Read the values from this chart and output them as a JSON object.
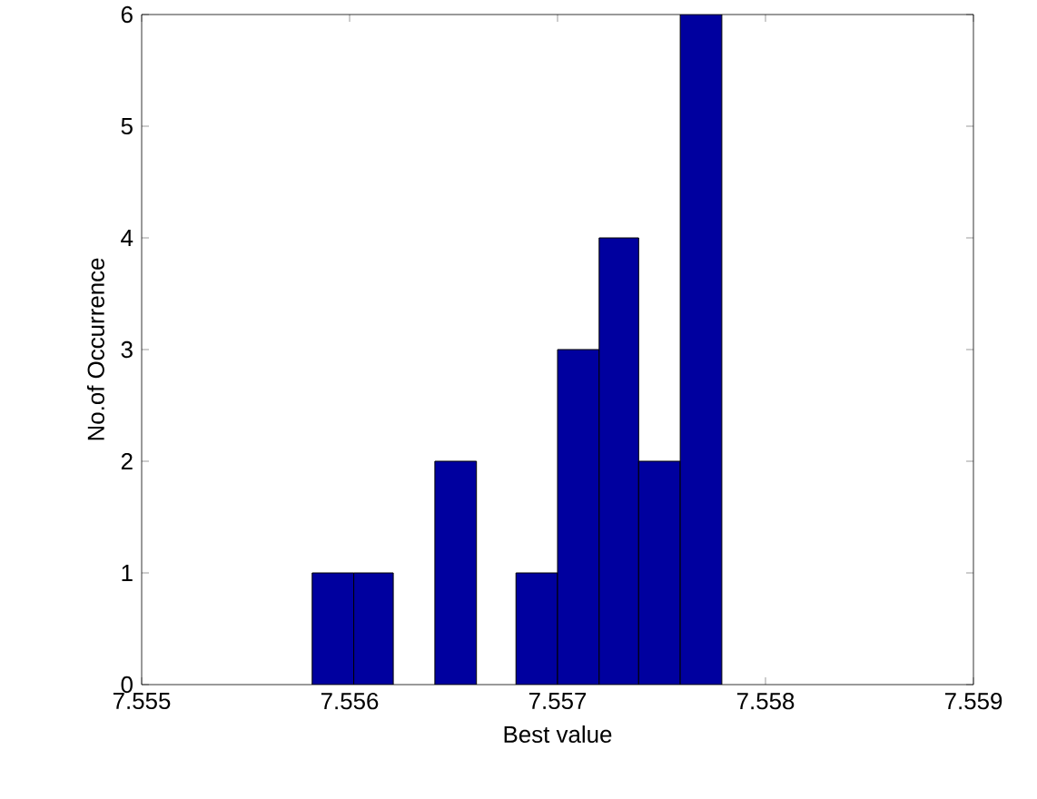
{
  "chart_data": {
    "type": "histogram",
    "xlabel": "Best value",
    "ylabel": "No.of Occurrence",
    "bins": [
      7.55582,
      7.55602,
      7.55621,
      7.55641,
      7.55661,
      7.5568,
      7.557,
      7.5572,
      7.55739,
      7.55759,
      7.55779
    ],
    "values": [
      1,
      1,
      0,
      2,
      0,
      1,
      3,
      4,
      2,
      6
    ],
    "color": "#00009f",
    "xlim": [
      7.555,
      7.559
    ],
    "xticks": [
      7.555,
      7.556,
      7.557,
      7.558,
      7.559
    ],
    "ylim": [
      0,
      6
    ],
    "yticks": [
      0,
      1,
      2,
      3,
      4,
      5,
      6
    ]
  }
}
